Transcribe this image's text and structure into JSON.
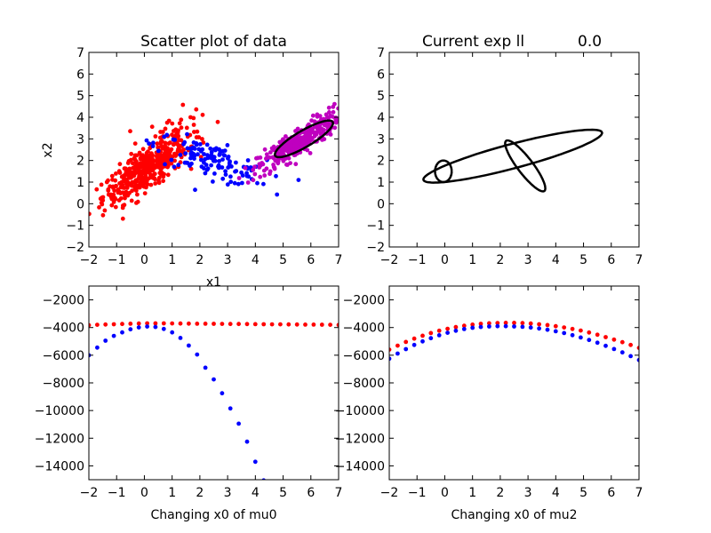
{
  "figure": {
    "background": "#ffffff"
  },
  "colors": {
    "red": "#ff0000",
    "blue": "#0000ff",
    "magenta": "#bf00bf",
    "black": "#000000"
  },
  "chart_data": [
    {
      "id": "scatter",
      "type": "scatter",
      "title": "Scatter plot of data",
      "xlabel": "x1",
      "ylabel": "x2",
      "xlim": [
        -2,
        7
      ],
      "ylim": [
        -2,
        7
      ],
      "xticks": [
        "−2",
        "−1",
        "0",
        "1",
        "2",
        "3",
        "4",
        "5",
        "6",
        "7"
      ],
      "yticks": [
        "−2",
        "−1",
        "0",
        "1",
        "2",
        "3",
        "4",
        "5",
        "6",
        "7"
      ],
      "grid": false,
      "series": [
        {
          "color": "red",
          "count": 420,
          "mean": [
            0.0,
            1.5
          ],
          "std": [
            0.75,
            0.75
          ],
          "corr": 0.78
        },
        {
          "color": "red",
          "count": 60,
          "mean": [
            1.2,
            3.1
          ],
          "std": [
            0.6,
            0.6
          ],
          "corr": 0.2
        },
        {
          "color": "blue",
          "count": 130,
          "mean": [
            2.4,
            2.0
          ],
          "std": [
            1.0,
            0.55
          ],
          "corr": -0.7
        },
        {
          "color": "magenta",
          "count": 340,
          "mean": [
            5.6,
            2.9
          ],
          "std": [
            0.75,
            0.7
          ],
          "corr": 0.88
        }
      ],
      "ellipses": [
        {
          "center": [
            5.75,
            3.0
          ],
          "semi_axes": [
            1.3,
            0.35
          ],
          "angle_deg": 38
        }
      ]
    },
    {
      "id": "ellipses",
      "type": "line",
      "title": "Current exp ll",
      "title_value": "0.0",
      "xlim": [
        -2,
        7
      ],
      "ylim": [
        -2,
        7
      ],
      "xticks": [
        "−2",
        "−1",
        "0",
        "1",
        "2",
        "3",
        "4",
        "5",
        "6",
        "7"
      ],
      "yticks": [
        "−2",
        "−1",
        "0",
        "1",
        "2",
        "3",
        "4",
        "5",
        "6",
        "7"
      ],
      "grid": false,
      "ellipses": [
        {
          "center": [
            -0.05,
            1.5
          ],
          "semi_axes": [
            0.3,
            0.5
          ],
          "angle_deg": 0
        },
        {
          "center": [
            2.9,
            1.75
          ],
          "semi_axes": [
            1.35,
            0.3
          ],
          "angle_deg": -60
        },
        {
          "center": [
            2.45,
            2.2
          ],
          "semi_axes": [
            3.4,
            0.55
          ],
          "angle_deg": 19
        }
      ]
    },
    {
      "id": "mu0",
      "type": "scatter",
      "xlabel": "Changing x0 of mu0",
      "xlim": [
        -2,
        7
      ],
      "ylim": [
        -15000,
        -1000
      ],
      "xticks": [
        "−2",
        "−1",
        "0",
        "1",
        "2",
        "3",
        "4",
        "5",
        "6",
        "7"
      ],
      "yticks": [
        "−14000",
        "−12000",
        "−10000",
        "−8000",
        "−6000",
        "−4000",
        "−2000"
      ],
      "ytick_values": [
        -14000,
        -12000,
        -10000,
        -8000,
        -6000,
        -4000,
        -2000
      ],
      "grid": false,
      "series": [
        {
          "color": "red",
          "x": [
            -2.0,
            -1.7,
            -1.4,
            -1.1,
            -0.8,
            -0.5,
            -0.2,
            0.1,
            0.4,
            0.7,
            1.0,
            1.3,
            1.6,
            1.9,
            2.2,
            2.5,
            2.8,
            3.1,
            3.4,
            3.7,
            4.0,
            4.3,
            4.6,
            4.9,
            5.2,
            5.5,
            5.8,
            6.1,
            6.4,
            6.7,
            7.0
          ],
          "y": [
            -3830,
            -3800,
            -3780,
            -3760,
            -3740,
            -3720,
            -3710,
            -3700,
            -3700,
            -3700,
            -3705,
            -3710,
            -3715,
            -3720,
            -3725,
            -3730,
            -3735,
            -3740,
            -3745,
            -3750,
            -3755,
            -3760,
            -3765,
            -3770,
            -3775,
            -3780,
            -3785,
            -3790,
            -3795,
            -3800,
            -3810
          ]
        },
        {
          "color": "blue",
          "x": [
            -2.0,
            -1.7,
            -1.4,
            -1.1,
            -0.8,
            -0.5,
            -0.2,
            0.1,
            0.4,
            0.7,
            1.0,
            1.3,
            1.6,
            1.9,
            2.2,
            2.5,
            2.8,
            3.1,
            3.4,
            3.7,
            4.0,
            4.3
          ],
          "y": [
            -6000,
            -5450,
            -4950,
            -4600,
            -4350,
            -4130,
            -3990,
            -3930,
            -3960,
            -4100,
            -4350,
            -4750,
            -5300,
            -5950,
            -6900,
            -7750,
            -8750,
            -9850,
            -10950,
            -12250,
            -13700,
            -15050
          ]
        }
      ]
    },
    {
      "id": "mu2",
      "type": "scatter",
      "xlabel": "Changing x0 of mu2",
      "xlim": [
        -2,
        7
      ],
      "ylim": [
        -15000,
        -1000
      ],
      "xticks": [
        "−2",
        "−1",
        "0",
        "1",
        "2",
        "3",
        "4",
        "5",
        "6",
        "7"
      ],
      "yticks": [
        "−14000",
        "−12000",
        "−10000",
        "−8000",
        "−6000",
        "−4000",
        "−2000"
      ],
      "ytick_values": [
        -14000,
        -12000,
        -10000,
        -8000,
        -6000,
        -4000,
        -2000
      ],
      "grid": false,
      "series": [
        {
          "color": "red",
          "x": [
            -2.0,
            -1.7,
            -1.4,
            -1.1,
            -0.8,
            -0.5,
            -0.2,
            0.1,
            0.4,
            0.7,
            1.0,
            1.3,
            1.6,
            1.9,
            2.2,
            2.5,
            2.8,
            3.1,
            3.4,
            3.7,
            4.0,
            4.3,
            4.6,
            4.9,
            5.2,
            5.5,
            5.8,
            6.1,
            6.4,
            6.7,
            7.0
          ],
          "y": [
            -5600,
            -5310,
            -5040,
            -4800,
            -4590,
            -4400,
            -4230,
            -4090,
            -3970,
            -3870,
            -3790,
            -3730,
            -3690,
            -3670,
            -3660,
            -3660,
            -3680,
            -3710,
            -3760,
            -3820,
            -3900,
            -3990,
            -4100,
            -4220,
            -4360,
            -4520,
            -4690,
            -4870,
            -5060,
            -5260,
            -5470
          ]
        },
        {
          "color": "blue",
          "x": [
            -2.0,
            -1.7,
            -1.4,
            -1.1,
            -0.8,
            -0.5,
            -0.2,
            0.1,
            0.4,
            0.7,
            1.0,
            1.3,
            1.6,
            1.9,
            2.2,
            2.5,
            2.8,
            3.1,
            3.4,
            3.7,
            4.0,
            4.3,
            4.6,
            4.9,
            5.2,
            5.5,
            5.8,
            6.1,
            6.4,
            6.7,
            7.0
          ],
          "y": [
            -6250,
            -5880,
            -5560,
            -5260,
            -5000,
            -4770,
            -4560,
            -4380,
            -4230,
            -4110,
            -4020,
            -3960,
            -3920,
            -3900,
            -3900,
            -3920,
            -3950,
            -4000,
            -4070,
            -4160,
            -4270,
            -4400,
            -4550,
            -4720,
            -4900,
            -5100,
            -5320,
            -5550,
            -5800,
            -6070,
            -6350
          ]
        }
      ]
    }
  ]
}
